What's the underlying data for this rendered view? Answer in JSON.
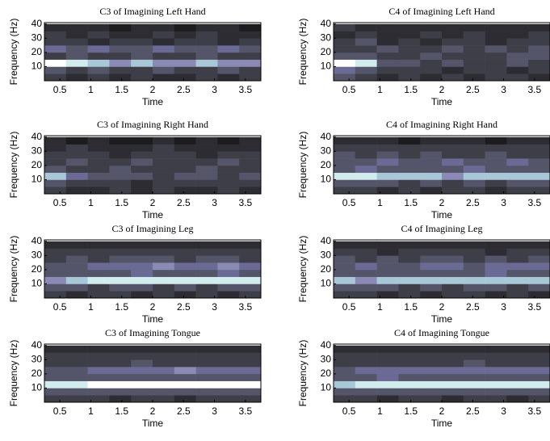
{
  "chart_data": [
    {
      "type": "heatmap",
      "title": "C3 of Imagining Left Hand",
      "xlabel": "Time",
      "ylabel": "Frequency (Hz)",
      "xlim": [
        0.25,
        3.75
      ],
      "ylim": [
        0,
        41
      ],
      "xticks": [
        0.5,
        1,
        1.5,
        2,
        2.5,
        3,
        3.5
      ],
      "yticks": [
        10,
        20,
        30,
        40
      ],
      "ybins": [
        0,
        5,
        10,
        15,
        20,
        25,
        30,
        35,
        40
      ],
      "z": [
        [
          3,
          2,
          3,
          2,
          3,
          2,
          2,
          3,
          2,
          3
        ],
        [
          4,
          3,
          4,
          3,
          3,
          4,
          3,
          3,
          4,
          3
        ],
        [
          9,
          8,
          7,
          6,
          7,
          6,
          6,
          7,
          6,
          6
        ],
        [
          3,
          4,
          3,
          3,
          4,
          3,
          3,
          4,
          3,
          3
        ],
        [
          5,
          4,
          5,
          4,
          4,
          5,
          4,
          4,
          5,
          4
        ],
        [
          3,
          3,
          2,
          3,
          3,
          2,
          3,
          3,
          2,
          3
        ],
        [
          3,
          2,
          3,
          2,
          2,
          3,
          2,
          3,
          2,
          2
        ],
        [
          2,
          2,
          2,
          1,
          2,
          2,
          1,
          2,
          2,
          1
        ]
      ]
    },
    {
      "type": "heatmap",
      "title": "C4 of Imagining Left Hand",
      "xlabel": "Time",
      "ylabel": "Frequency (Hz)",
      "xlim": [
        0.25,
        3.75
      ],
      "ylim": [
        0,
        41
      ],
      "xticks": [
        0.5,
        1,
        1.5,
        2,
        2.5,
        3,
        3.5
      ],
      "yticks": [
        10,
        20,
        30,
        40
      ],
      "ybins": [
        0,
        5,
        10,
        15,
        20,
        25,
        30,
        35,
        40
      ],
      "z": [
        [
          4,
          3,
          2,
          3,
          2,
          3,
          2,
          3,
          3,
          2
        ],
        [
          5,
          4,
          3,
          3,
          3,
          2,
          3,
          3,
          2,
          3
        ],
        [
          9,
          8,
          4,
          4,
          3,
          4,
          3,
          3,
          4,
          3
        ],
        [
          4,
          4,
          3,
          3,
          4,
          3,
          3,
          3,
          4,
          4
        ],
        [
          3,
          3,
          4,
          3,
          3,
          4,
          3,
          4,
          3,
          4
        ],
        [
          3,
          4,
          2,
          3,
          2,
          3,
          3,
          2,
          3,
          3
        ],
        [
          2,
          3,
          2,
          2,
          3,
          2,
          3,
          2,
          2,
          3
        ],
        [
          3,
          2,
          2,
          2,
          2,
          2,
          2,
          2,
          2,
          2
        ]
      ]
    },
    {
      "type": "heatmap",
      "title": "C3 of Imagining Right Hand",
      "xlabel": "Time",
      "ylabel": "Frequency (Hz)",
      "xlim": [
        0.25,
        3.75
      ],
      "ylim": [
        0,
        41
      ],
      "xticks": [
        0.5,
        1,
        1.5,
        2,
        2.5,
        3,
        3.5
      ],
      "yticks": [
        10,
        20,
        30,
        40
      ],
      "ybins": [
        0,
        5,
        10,
        15,
        20,
        25,
        30,
        35,
        40
      ],
      "z": [
        [
          3,
          2,
          2,
          3,
          2,
          3,
          2,
          2,
          3,
          2
        ],
        [
          4,
          3,
          3,
          3,
          2,
          3,
          3,
          3,
          3,
          3
        ],
        [
          7,
          5,
          4,
          4,
          4,
          3,
          4,
          4,
          3,
          4
        ],
        [
          4,
          3,
          3,
          4,
          3,
          3,
          3,
          4,
          3,
          3
        ],
        [
          3,
          4,
          3,
          3,
          4,
          3,
          3,
          3,
          4,
          3
        ],
        [
          3,
          3,
          3,
          2,
          3,
          3,
          3,
          2,
          3,
          3
        ],
        [
          2,
          3,
          2,
          2,
          2,
          3,
          2,
          2,
          2,
          2
        ],
        [
          2,
          1,
          2,
          1,
          1,
          2,
          1,
          2,
          1,
          2
        ]
      ]
    },
    {
      "type": "heatmap",
      "title": "C4 of Imagining Right Hand",
      "xlabel": "Time",
      "ylabel": "Frequency (Hz)",
      "xlim": [
        0.25,
        3.75
      ],
      "ylim": [
        0,
        41
      ],
      "xticks": [
        0.5,
        1,
        1.5,
        2,
        2.5,
        3,
        3.5
      ],
      "yticks": [
        10,
        20,
        30,
        40
      ],
      "ybins": [
        0,
        5,
        10,
        15,
        20,
        25,
        30,
        35,
        40
      ],
      "z": [
        [
          3,
          3,
          2,
          3,
          2,
          3,
          3,
          2,
          3,
          3
        ],
        [
          4,
          4,
          4,
          3,
          4,
          3,
          4,
          3,
          4,
          4
        ],
        [
          8,
          8,
          7,
          7,
          7,
          6,
          7,
          7,
          7,
          7
        ],
        [
          4,
          5,
          4,
          4,
          4,
          4,
          5,
          4,
          4,
          4
        ],
        [
          4,
          4,
          5,
          4,
          4,
          5,
          4,
          4,
          5,
          4
        ],
        [
          4,
          3,
          4,
          3,
          4,
          3,
          3,
          4,
          3,
          3
        ],
        [
          3,
          3,
          3,
          3,
          3,
          3,
          3,
          3,
          3,
          3
        ],
        [
          2,
          2,
          2,
          1,
          2,
          2,
          2,
          1,
          2,
          2
        ]
      ]
    },
    {
      "type": "heatmap",
      "title": "C3 of Imagining Leg",
      "xlabel": "Time",
      "ylabel": "Frequency (Hz)",
      "xlim": [
        0.25,
        3.75
      ],
      "ylim": [
        0,
        41
      ],
      "xticks": [
        0.5,
        1,
        1.5,
        2,
        2.5,
        3,
        3.5
      ],
      "yticks": [
        10,
        20,
        30,
        40
      ],
      "ybins": [
        0,
        5,
        10,
        15,
        20,
        25,
        30,
        35,
        40
      ],
      "z": [
        [
          3,
          2,
          3,
          3,
          2,
          3,
          2,
          3,
          2,
          3
        ],
        [
          4,
          4,
          3,
          4,
          4,
          3,
          4,
          3,
          4,
          4
        ],
        [
          6,
          7,
          8,
          8,
          8,
          8,
          8,
          8,
          8,
          8
        ],
        [
          4,
          4,
          4,
          4,
          5,
          4,
          4,
          4,
          5,
          4
        ],
        [
          4,
          4,
          5,
          5,
          5,
          6,
          5,
          5,
          6,
          5
        ],
        [
          3,
          4,
          3,
          4,
          4,
          4,
          3,
          4,
          4,
          3
        ],
        [
          3,
          3,
          3,
          3,
          3,
          3,
          3,
          3,
          3,
          3
        ],
        [
          2,
          2,
          2,
          2,
          2,
          2,
          2,
          2,
          2,
          2
        ]
      ]
    },
    {
      "type": "heatmap",
      "title": "C4 of Imagining Leg",
      "xlabel": "Time",
      "ylabel": "Frequency (Hz)",
      "xlim": [
        0.25,
        3.75
      ],
      "ylim": [
        0,
        41
      ],
      "xticks": [
        0.5,
        1,
        1.5,
        2,
        2.5,
        3,
        3.5
      ],
      "yticks": [
        10,
        20,
        30,
        40
      ],
      "ybins": [
        0,
        5,
        10,
        15,
        20,
        25,
        30,
        35,
        40
      ],
      "z": [
        [
          3,
          3,
          2,
          3,
          2,
          3,
          3,
          2,
          3,
          2
        ],
        [
          4,
          4,
          4,
          3,
          4,
          3,
          4,
          4,
          3,
          4
        ],
        [
          7,
          6,
          7,
          7,
          7,
          7,
          7,
          7,
          7,
          7
        ],
        [
          4,
          4,
          4,
          4,
          4,
          4,
          4,
          5,
          4,
          4
        ],
        [
          4,
          5,
          4,
          4,
          5,
          5,
          4,
          5,
          5,
          5
        ],
        [
          4,
          3,
          4,
          3,
          4,
          4,
          3,
          4,
          3,
          4
        ],
        [
          3,
          3,
          2,
          3,
          3,
          3,
          3,
          2,
          3,
          3
        ],
        [
          2,
          2,
          2,
          2,
          2,
          2,
          2,
          2,
          2,
          2
        ]
      ]
    },
    {
      "type": "heatmap",
      "title": "C3 of Imagining Tongue",
      "xlabel": "Time",
      "ylabel": "Frequency (Hz)",
      "xlim": [
        0.25,
        3.75
      ],
      "ylim": [
        0,
        41
      ],
      "xticks": [
        0.5,
        1,
        1.5,
        2,
        2.5,
        3,
        3.5
      ],
      "yticks": [
        10,
        20,
        30,
        40
      ],
      "ybins": [
        0,
        5,
        10,
        15,
        20,
        25,
        30,
        35,
        40
      ],
      "z": [
        [
          3,
          3,
          3,
          2,
          3,
          3,
          2,
          3,
          3,
          3
        ],
        [
          4,
          4,
          4,
          4,
          4,
          4,
          4,
          4,
          4,
          4
        ],
        [
          8,
          8,
          9,
          9,
          9,
          9,
          9,
          9,
          9,
          9
        ],
        [
          4,
          4,
          4,
          4,
          4,
          4,
          4,
          4,
          4,
          4
        ],
        [
          4,
          4,
          5,
          5,
          5,
          5,
          6,
          5,
          5,
          5
        ],
        [
          3,
          3,
          3,
          3,
          4,
          3,
          3,
          3,
          3,
          3
        ],
        [
          3,
          3,
          3,
          3,
          3,
          3,
          3,
          3,
          3,
          3
        ],
        [
          2,
          2,
          2,
          2,
          2,
          2,
          2,
          2,
          2,
          2
        ]
      ]
    },
    {
      "type": "heatmap",
      "title": "C4 of Imagining Tongue",
      "xlabel": "Time",
      "ylabel": "Frequency (Hz)",
      "xlim": [
        0.25,
        3.75
      ],
      "ylim": [
        0,
        41
      ],
      "xticks": [
        0.5,
        1,
        1.5,
        2,
        2.5,
        3,
        3.5
      ],
      "yticks": [
        10,
        20,
        30,
        40
      ],
      "ybins": [
        0,
        5,
        10,
        15,
        20,
        25,
        30,
        35,
        40
      ],
      "z": [
        [
          3,
          3,
          2,
          3,
          3,
          2,
          3,
          3,
          2,
          3
        ],
        [
          4,
          4,
          4,
          4,
          4,
          4,
          4,
          4,
          4,
          4
        ],
        [
          7,
          8,
          8,
          8,
          8,
          8,
          8,
          8,
          8,
          8
        ],
        [
          4,
          4,
          5,
          4,
          4,
          4,
          4,
          4,
          4,
          4
        ],
        [
          4,
          5,
          5,
          5,
          5,
          5,
          5,
          5,
          5,
          5
        ],
        [
          3,
          3,
          3,
          3,
          3,
          3,
          4,
          3,
          3,
          3
        ],
        [
          3,
          3,
          3,
          3,
          3,
          3,
          3,
          3,
          3,
          3
        ],
        [
          2,
          2,
          2,
          2,
          2,
          2,
          2,
          2,
          2,
          2
        ]
      ]
    }
  ]
}
